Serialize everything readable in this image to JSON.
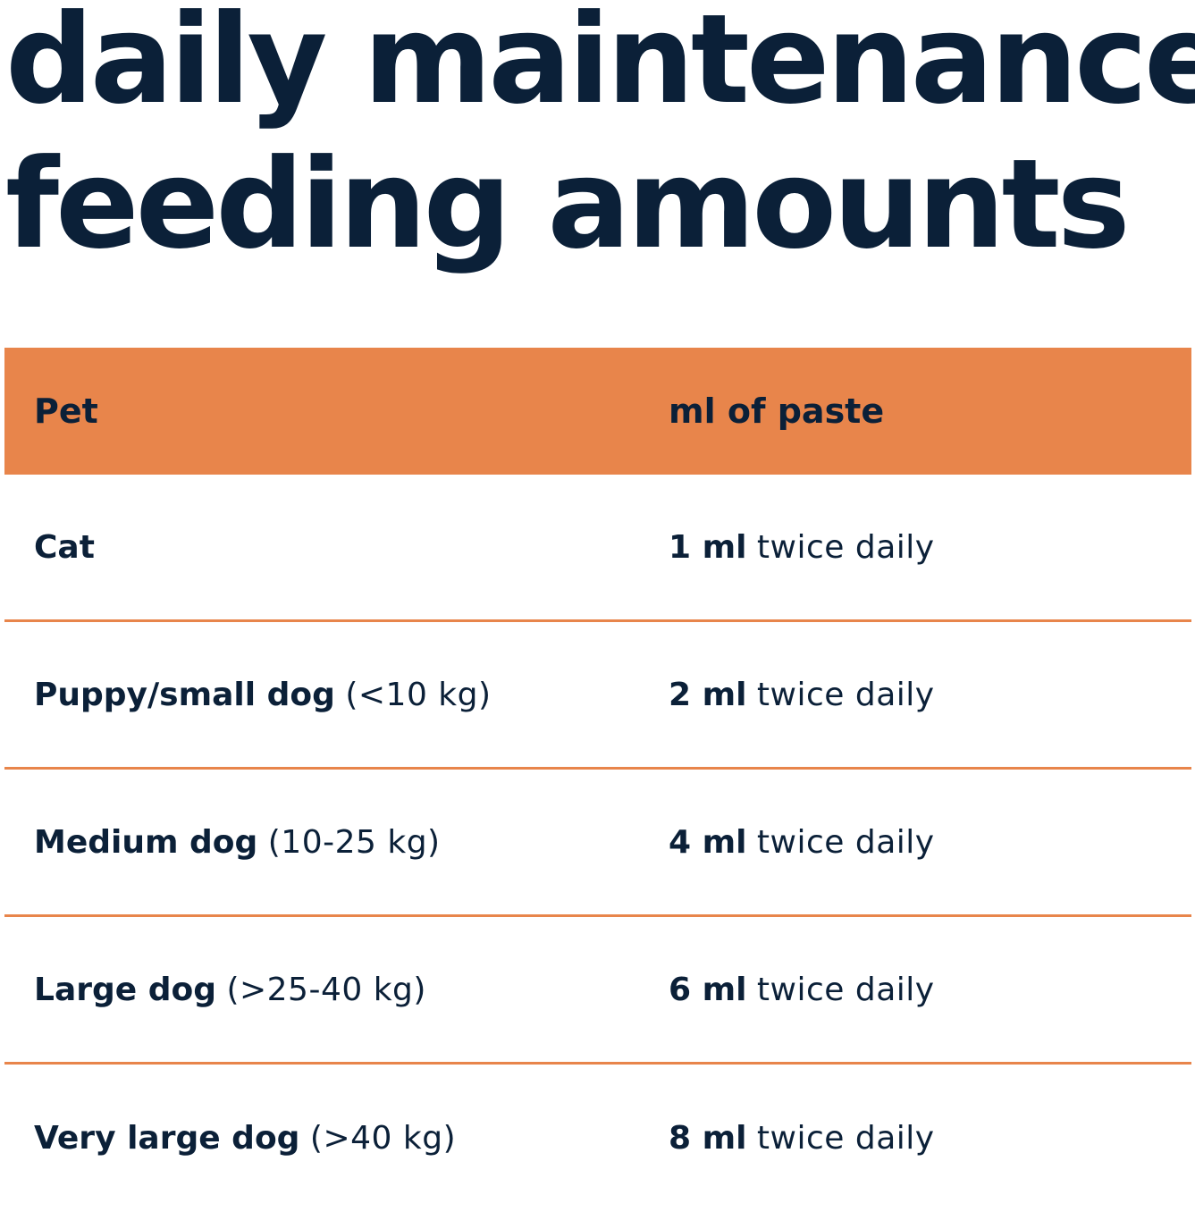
{
  "title": {
    "line1": "daily maintenance",
    "line2": "feeding amounts"
  },
  "table": {
    "header": {
      "pet": "Pet",
      "amount": "ml of paste"
    },
    "rows": [
      {
        "pet": "Cat",
        "weight": "",
        "amount": "1 ml",
        "frequency": "twice daily"
      },
      {
        "pet": "Puppy/small dog",
        "weight": "(<10 kg)",
        "amount": "2 ml",
        "frequency": "twice daily"
      },
      {
        "pet": "Medium dog",
        "weight": "(10-25 kg)",
        "amount": "4 ml",
        "frequency": "twice daily"
      },
      {
        "pet": "Large dog",
        "weight": "(>25-40 kg)",
        "amount": "6 ml",
        "frequency": "twice daily"
      },
      {
        "pet": "Very large dog",
        "weight": "(>40 kg)",
        "amount": "8 ml",
        "frequency": "twice daily"
      }
    ]
  },
  "colors": {
    "text": "#0b2038",
    "accent": "#e8854b",
    "background": "#ffffff"
  }
}
